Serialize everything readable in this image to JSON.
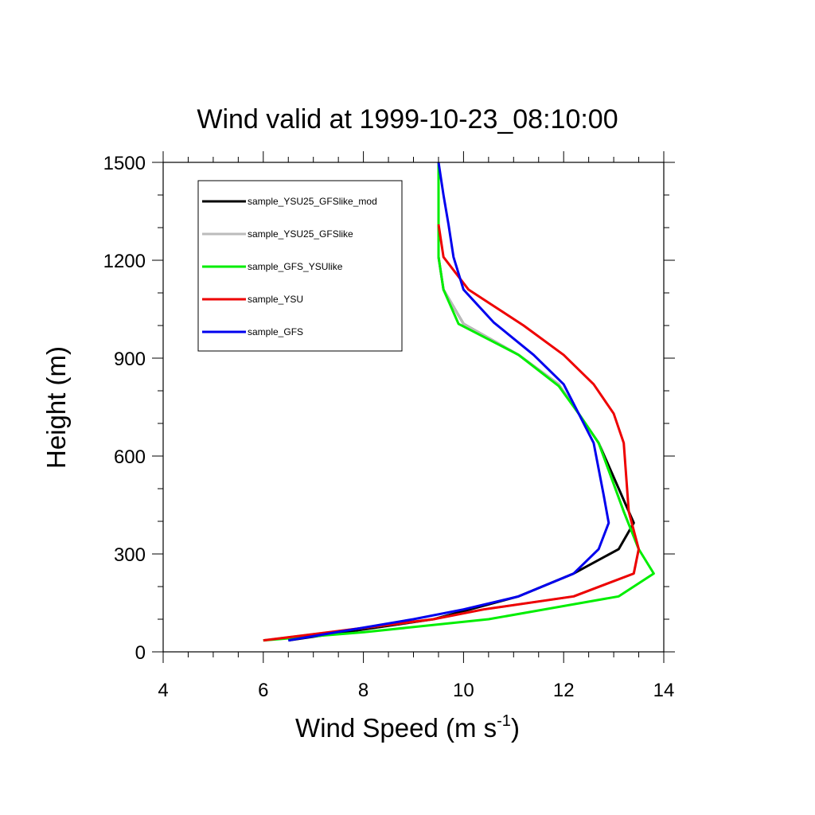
{
  "chart_data": {
    "type": "line",
    "title": "Wind valid at 1999-10-23_08:10:00",
    "xlabel": "Wind Speed (m s",
    "xlabel_sup": "-1",
    "xlabel_suffix": ")",
    "ylabel": "Height (m)",
    "xlim": [
      4,
      14
    ],
    "ylim": [
      0,
      1500
    ],
    "xticks": [
      4,
      6,
      8,
      10,
      12,
      14
    ],
    "yticks": [
      0,
      300,
      600,
      900,
      1200,
      1500
    ],
    "grid": false,
    "legend_position": "top-left",
    "series": [
      {
        "name": "sample_YSU25_GFSlike_mod",
        "color": "#000000",
        "points": [
          [
            6.5,
            35
          ],
          [
            9.4,
            100
          ],
          [
            11.1,
            170
          ],
          [
            12.2,
            240
          ],
          [
            13.1,
            315
          ],
          [
            13.4,
            395
          ],
          [
            12.7,
            640
          ],
          [
            12.3,
            730
          ],
          [
            11.9,
            820
          ],
          [
            11.1,
            910
          ],
          [
            10.0,
            1005
          ],
          [
            9.6,
            1110
          ],
          [
            9.5,
            1210
          ],
          [
            9.5,
            1310
          ],
          [
            9.5,
            1400
          ],
          [
            9.5,
            1500
          ]
        ]
      },
      {
        "name": "sample_YSU25_GFSlike",
        "color": "#bbbbbb",
        "points": [
          [
            6.0,
            35
          ],
          [
            9.4,
            100
          ],
          [
            10.4,
            130
          ],
          [
            12.2,
            170
          ],
          [
            13.4,
            240
          ],
          [
            13.5,
            315
          ],
          [
            13.2,
            430
          ],
          [
            12.7,
            640
          ],
          [
            12.3,
            730
          ],
          [
            11.9,
            820
          ],
          [
            11.1,
            910
          ],
          [
            10.0,
            1005
          ],
          [
            9.6,
            1110
          ],
          [
            9.5,
            1210
          ],
          [
            9.5,
            1310
          ],
          [
            9.5,
            1400
          ],
          [
            9.5,
            1500
          ]
        ]
      },
      {
        "name": "sample_GFS_YSUlike",
        "color": "#00ee00",
        "points": [
          [
            6.0,
            35
          ],
          [
            8.0,
            60
          ],
          [
            10.5,
            100
          ],
          [
            13.1,
            170
          ],
          [
            13.8,
            240
          ],
          [
            13.5,
            315
          ],
          [
            13.2,
            430
          ],
          [
            12.7,
            640
          ],
          [
            12.3,
            730
          ],
          [
            11.9,
            815
          ],
          [
            11.1,
            910
          ],
          [
            9.9,
            1005
          ],
          [
            9.6,
            1110
          ],
          [
            9.5,
            1210
          ],
          [
            9.5,
            1310
          ],
          [
            9.5,
            1400
          ],
          [
            9.5,
            1500
          ]
        ]
      },
      {
        "name": "sample_YSU",
        "color": "#ee0000",
        "points": [
          [
            6.0,
            35
          ],
          [
            9.4,
            100
          ],
          [
            10.4,
            130
          ],
          [
            12.2,
            170
          ],
          [
            13.4,
            240
          ],
          [
            13.5,
            315
          ],
          [
            13.3,
            430
          ],
          [
            13.2,
            640
          ],
          [
            13.0,
            730
          ],
          [
            12.6,
            820
          ],
          [
            12.0,
            910
          ],
          [
            11.2,
            1000
          ],
          [
            10.1,
            1110
          ],
          [
            9.6,
            1210
          ],
          [
            9.5,
            1310
          ]
        ]
      },
      {
        "name": "sample_GFS",
        "color": "#0000ee",
        "points": [
          [
            6.5,
            35
          ],
          [
            9.0,
            100
          ],
          [
            10.0,
            130
          ],
          [
            11.1,
            170
          ],
          [
            12.2,
            240
          ],
          [
            12.7,
            315
          ],
          [
            12.9,
            395
          ],
          [
            12.8,
            480
          ],
          [
            12.6,
            640
          ],
          [
            12.3,
            730
          ],
          [
            12.0,
            820
          ],
          [
            11.4,
            910
          ],
          [
            10.6,
            1010
          ],
          [
            10.0,
            1110
          ],
          [
            9.8,
            1210
          ],
          [
            9.7,
            1310
          ],
          [
            9.6,
            1400
          ],
          [
            9.5,
            1500
          ]
        ]
      }
    ]
  }
}
